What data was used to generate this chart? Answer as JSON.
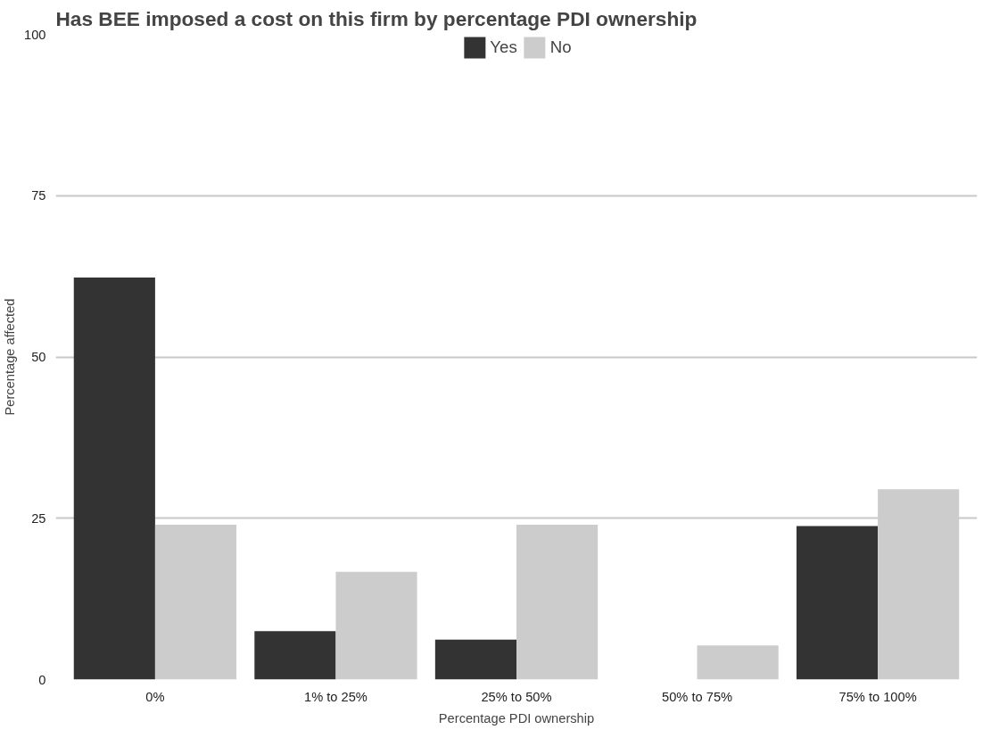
{
  "chart_data": {
    "type": "bar",
    "title": "Has BEE imposed a cost on this firm by percentage PDI ownership",
    "xlabel": "Percentage PDI ownership",
    "ylabel": "Percentage affected",
    "categories": [
      "0%",
      "1% to 25%",
      "25% to 50%",
      "50% to 75%",
      "75% to 100%"
    ],
    "series": [
      {
        "name": "Yes",
        "color": "#333333",
        "values": [
          62.3,
          7.5,
          6.2,
          0,
          23.8
        ]
      },
      {
        "name": "No",
        "color": "#cccccc",
        "values": [
          24.0,
          16.7,
          24.0,
          5.3,
          29.5
        ]
      }
    ],
    "ylim": [
      0,
      100
    ],
    "yticks": [
      0,
      25,
      50,
      75,
      100
    ],
    "grid": "y",
    "legend": "top"
  }
}
